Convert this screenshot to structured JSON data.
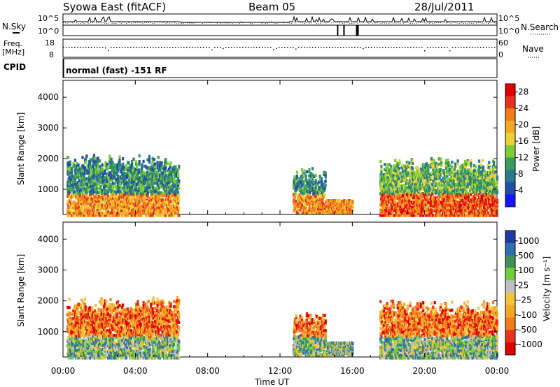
{
  "header": {
    "station": "Syowa East (fitACF)",
    "beam": "Beam 05",
    "date": "28/Jul/2011"
  },
  "noise_panel": {
    "left_label": "N.Sky",
    "right_label": "N.Search",
    "left_ticks": [
      "10^5",
      "10^0"
    ],
    "right_ticks": [
      "10^5",
      "10^0"
    ]
  },
  "freq_panel": {
    "left_label_1": "Freq.",
    "left_label_2": "[MHz]",
    "right_label": "Nave",
    "left_ticks": [
      "18",
      "8"
    ],
    "right_ticks": [
      "60",
      "0"
    ]
  },
  "cpid": {
    "label": "CPID",
    "program": "normal (fast) -151 RF"
  },
  "chart_data": [
    {
      "type": "heatmap",
      "name": "power",
      "ylabel": "Slant Range [km]",
      "xlabel": "Time UT",
      "x_ticks": [
        "00:00",
        "04:00",
        "08:00",
        "12:00",
        "16:00",
        "20:00",
        "00:00"
      ],
      "x_hours": [
        0,
        4,
        8,
        12,
        16,
        20,
        24
      ],
      "xlim": [
        0,
        24
      ],
      "y_ticks": [
        1000,
        2000,
        3000,
        4000
      ],
      "ylim": [
        180,
        4550
      ],
      "colorbar": {
        "label": "Power [dB]",
        "ticks": [
          "4",
          "8",
          "12",
          "16",
          "20",
          "24",
          "28"
        ],
        "colors": [
          "#1515ff",
          "#234ea8",
          "#2a7a8c",
          "#3a9b5a",
          "#7bcc35",
          "#e8d23a",
          "#f5a623",
          "#f07d1a",
          "#e8331c",
          "#e00000"
        ]
      },
      "echo_regions": [
        {
          "t0": 0.2,
          "t1": 6.4,
          "r0": 200,
          "r1": 2250,
          "level": "mixed"
        },
        {
          "t0": 12.7,
          "t1": 16.0,
          "r0": 300,
          "r1": 1800,
          "level": "low"
        },
        {
          "t0": 17.5,
          "t1": 24.0,
          "r0": 200,
          "r1": 2150,
          "level": "high"
        }
      ]
    },
    {
      "type": "heatmap",
      "name": "velocity",
      "ylabel": "Slant Range [km]",
      "xlabel": "Time UT",
      "x_ticks": [
        "00:00",
        "04:00",
        "08:00",
        "12:00",
        "16:00",
        "20:00",
        "00:00"
      ],
      "x_hours": [
        0,
        4,
        8,
        12,
        16,
        20,
        24
      ],
      "xlim": [
        0,
        24
      ],
      "y_ticks": [
        1000,
        2000,
        3000,
        4000
      ],
      "ylim": [
        180,
        4550
      ],
      "colorbar": {
        "label": "Velocity [m s⁻¹]",
        "ticks": [
          "1000",
          "500",
          "100",
          "25",
          "-25",
          "-100",
          "-500",
          "-1000"
        ],
        "colors": [
          "#1f3aa8",
          "#2f6fb0",
          "#3f8f5a",
          "#6fcf3a",
          "#bfbfbf",
          "#f2c23a",
          "#f5a623",
          "#f07d1a",
          "#e8331c",
          "#e00000"
        ]
      },
      "echo_regions": [
        {
          "t0": 0.2,
          "t1": 6.4,
          "r0": 200,
          "r1": 2250,
          "level": "mixed"
        },
        {
          "t0": 12.7,
          "t1": 16.0,
          "r0": 300,
          "r1": 1800,
          "level": "low"
        },
        {
          "t0": 17.5,
          "t1": 24.0,
          "r0": 200,
          "r1": 2150,
          "level": "high"
        }
      ]
    }
  ],
  "footer": {
    "x_label": "Time UT"
  }
}
